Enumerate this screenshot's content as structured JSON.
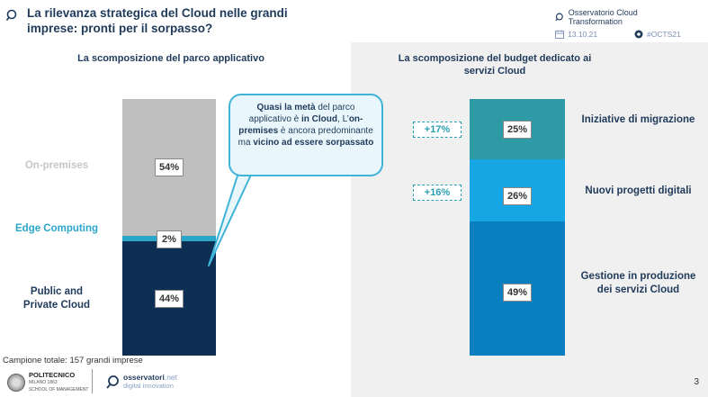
{
  "header": {
    "title": "La rilevanza strategica del Cloud nelle grandi imprese: pronti per il sorpasso?",
    "brand": "Osservatorio Cloud Transformation",
    "date": "13.10.21",
    "hashtag": "#OCTS21"
  },
  "left": {
    "section_title": "La scomposizione del parco applicativo",
    "segments": [
      {
        "label": "On-premises",
        "value": "54%",
        "color": "#bfbfbf",
        "label_color": "#c6c6c6"
      },
      {
        "label": "Edge Computing",
        "value": "2%",
        "color": "#2aa6c9",
        "label_color": "#2aa6c9"
      },
      {
        "label": "Public and Private Cloud",
        "value": "44%",
        "color": "#0e2f54",
        "label_color": "#1f3a5a"
      }
    ],
    "public_label_line1": "Public and",
    "public_label_line2": "Private Cloud"
  },
  "callout": {
    "b1": "Quasi la metà",
    "t1": " del parco applicativo è ",
    "b2": "in Cloud",
    "t2": ", L’",
    "b3": "on-premises",
    "t3": " è ancora predominante ma ",
    "b4": "vicino ad essere sorpassato"
  },
  "right": {
    "section_title": "La scomposizione del budget dedicato ai servizi Cloud",
    "segments": [
      {
        "label": "Iniziative di migrazione",
        "value": "25%",
        "growth": "+17%",
        "color": "#2d9aa5"
      },
      {
        "label": "Nuovi progetti digitali",
        "value": "26%",
        "growth": "+16%",
        "color": "#17a6e4"
      },
      {
        "label": "Gestione in produzione dei servizi Cloud",
        "value": "49%",
        "growth": "",
        "color": "#0a7fbf"
      }
    ],
    "label3_line1": "Gestione in produzione",
    "label3_line2": "dei servizi Cloud"
  },
  "footer": {
    "sample": "Campione totale: 157 grandi imprese",
    "poli_name": "POLITECNICO",
    "poli_sub1": "MILANO 1863",
    "poli_sub2": "SCHOOL OF MANAGEMENT",
    "osserv_name": "osservatori",
    "osserv_net": ".net",
    "osserv_sub": "digital innovation",
    "page": "3"
  }
}
